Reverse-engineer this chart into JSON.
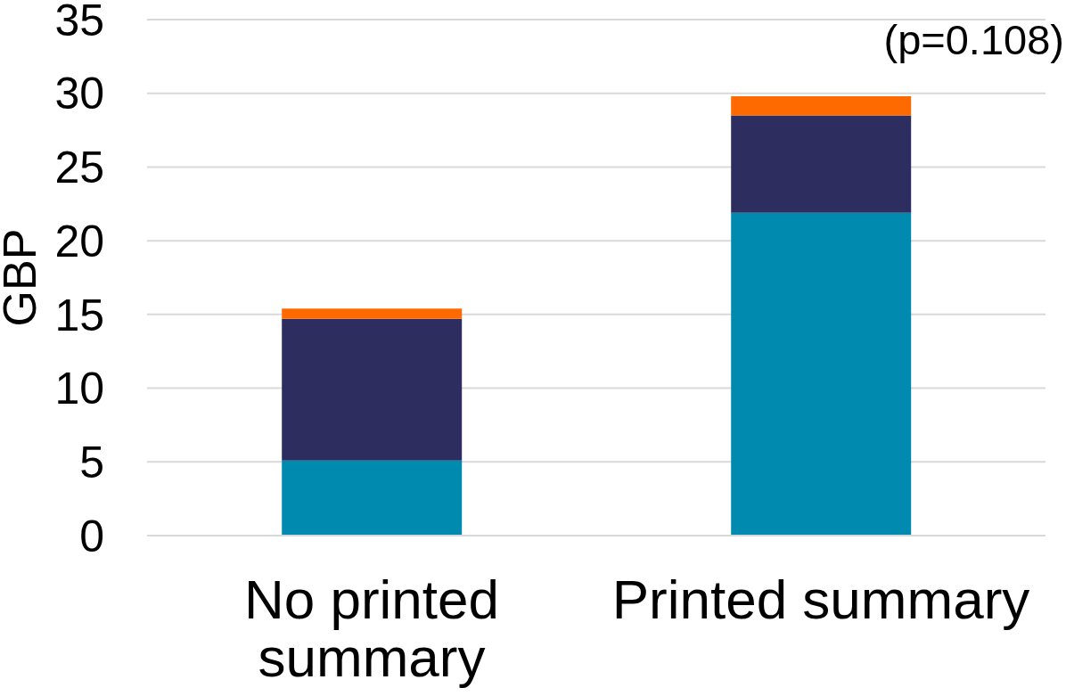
{
  "chart_data": {
    "type": "bar",
    "ylabel": "GBP",
    "annotations": [
      "(p=0.108)"
    ],
    "categories": [
      "No printed summary",
      "Printed summary"
    ],
    "series": [
      {
        "color": "#018aaf",
        "values": [
          5.1,
          21.9
        ]
      },
      {
        "color": "#2e2d60",
        "values": [
          9.6,
          6.6
        ]
      },
      {
        "color": "#ff6a00",
        "values": [
          0.7,
          1.3
        ]
      }
    ],
    "stacked": true,
    "ylim": [
      0,
      35
    ],
    "yticks": [
      0,
      5,
      10,
      15,
      20,
      25,
      30,
      35
    ],
    "grid": "y"
  }
}
